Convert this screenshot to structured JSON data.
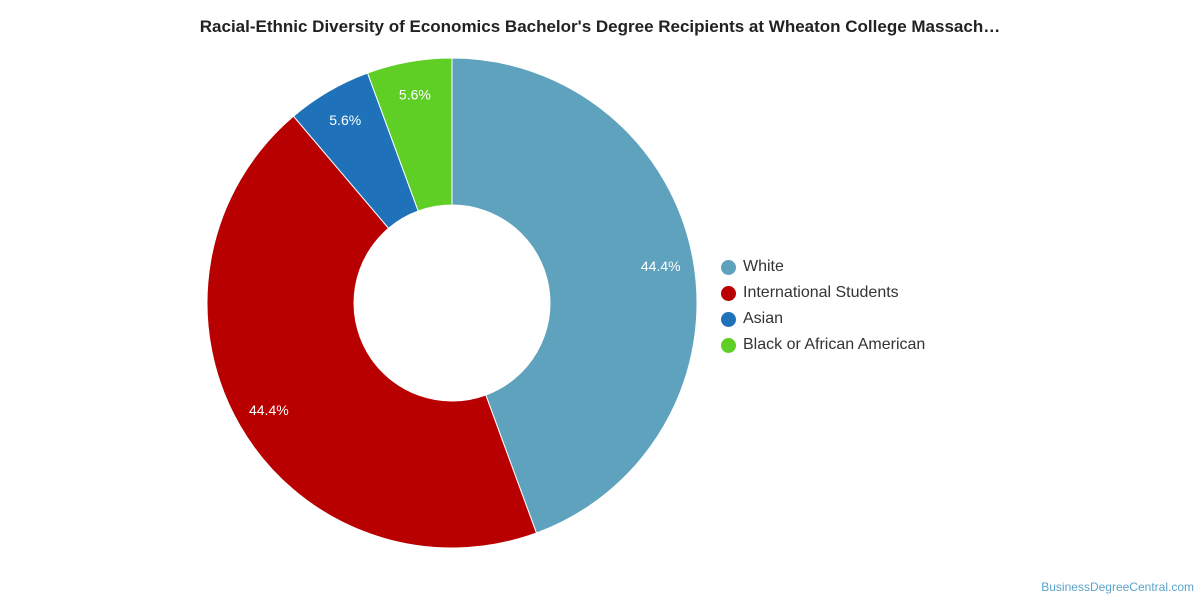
{
  "chart_data": {
    "type": "pie",
    "style": "donut",
    "title": "Racial-Ethnic Diversity of Economics Bachelor's Degree Recipients at Wheaton College Massach…",
    "legend_position": "right",
    "slices": [
      {
        "label": "White",
        "value": 44.4,
        "display": "44.4%",
        "color": "#5fa2be"
      },
      {
        "label": "International Students",
        "value": 44.4,
        "display": "44.4%",
        "color": "#b80000"
      },
      {
        "label": "Asian",
        "value": 5.6,
        "display": "5.6%",
        "color": "#1f72ba"
      },
      {
        "label": "Black or African American",
        "value": 5.6,
        "display": "5.6%",
        "color": "#5fcf26"
      }
    ]
  },
  "watermark": "BusinessDegreeCentral.com"
}
